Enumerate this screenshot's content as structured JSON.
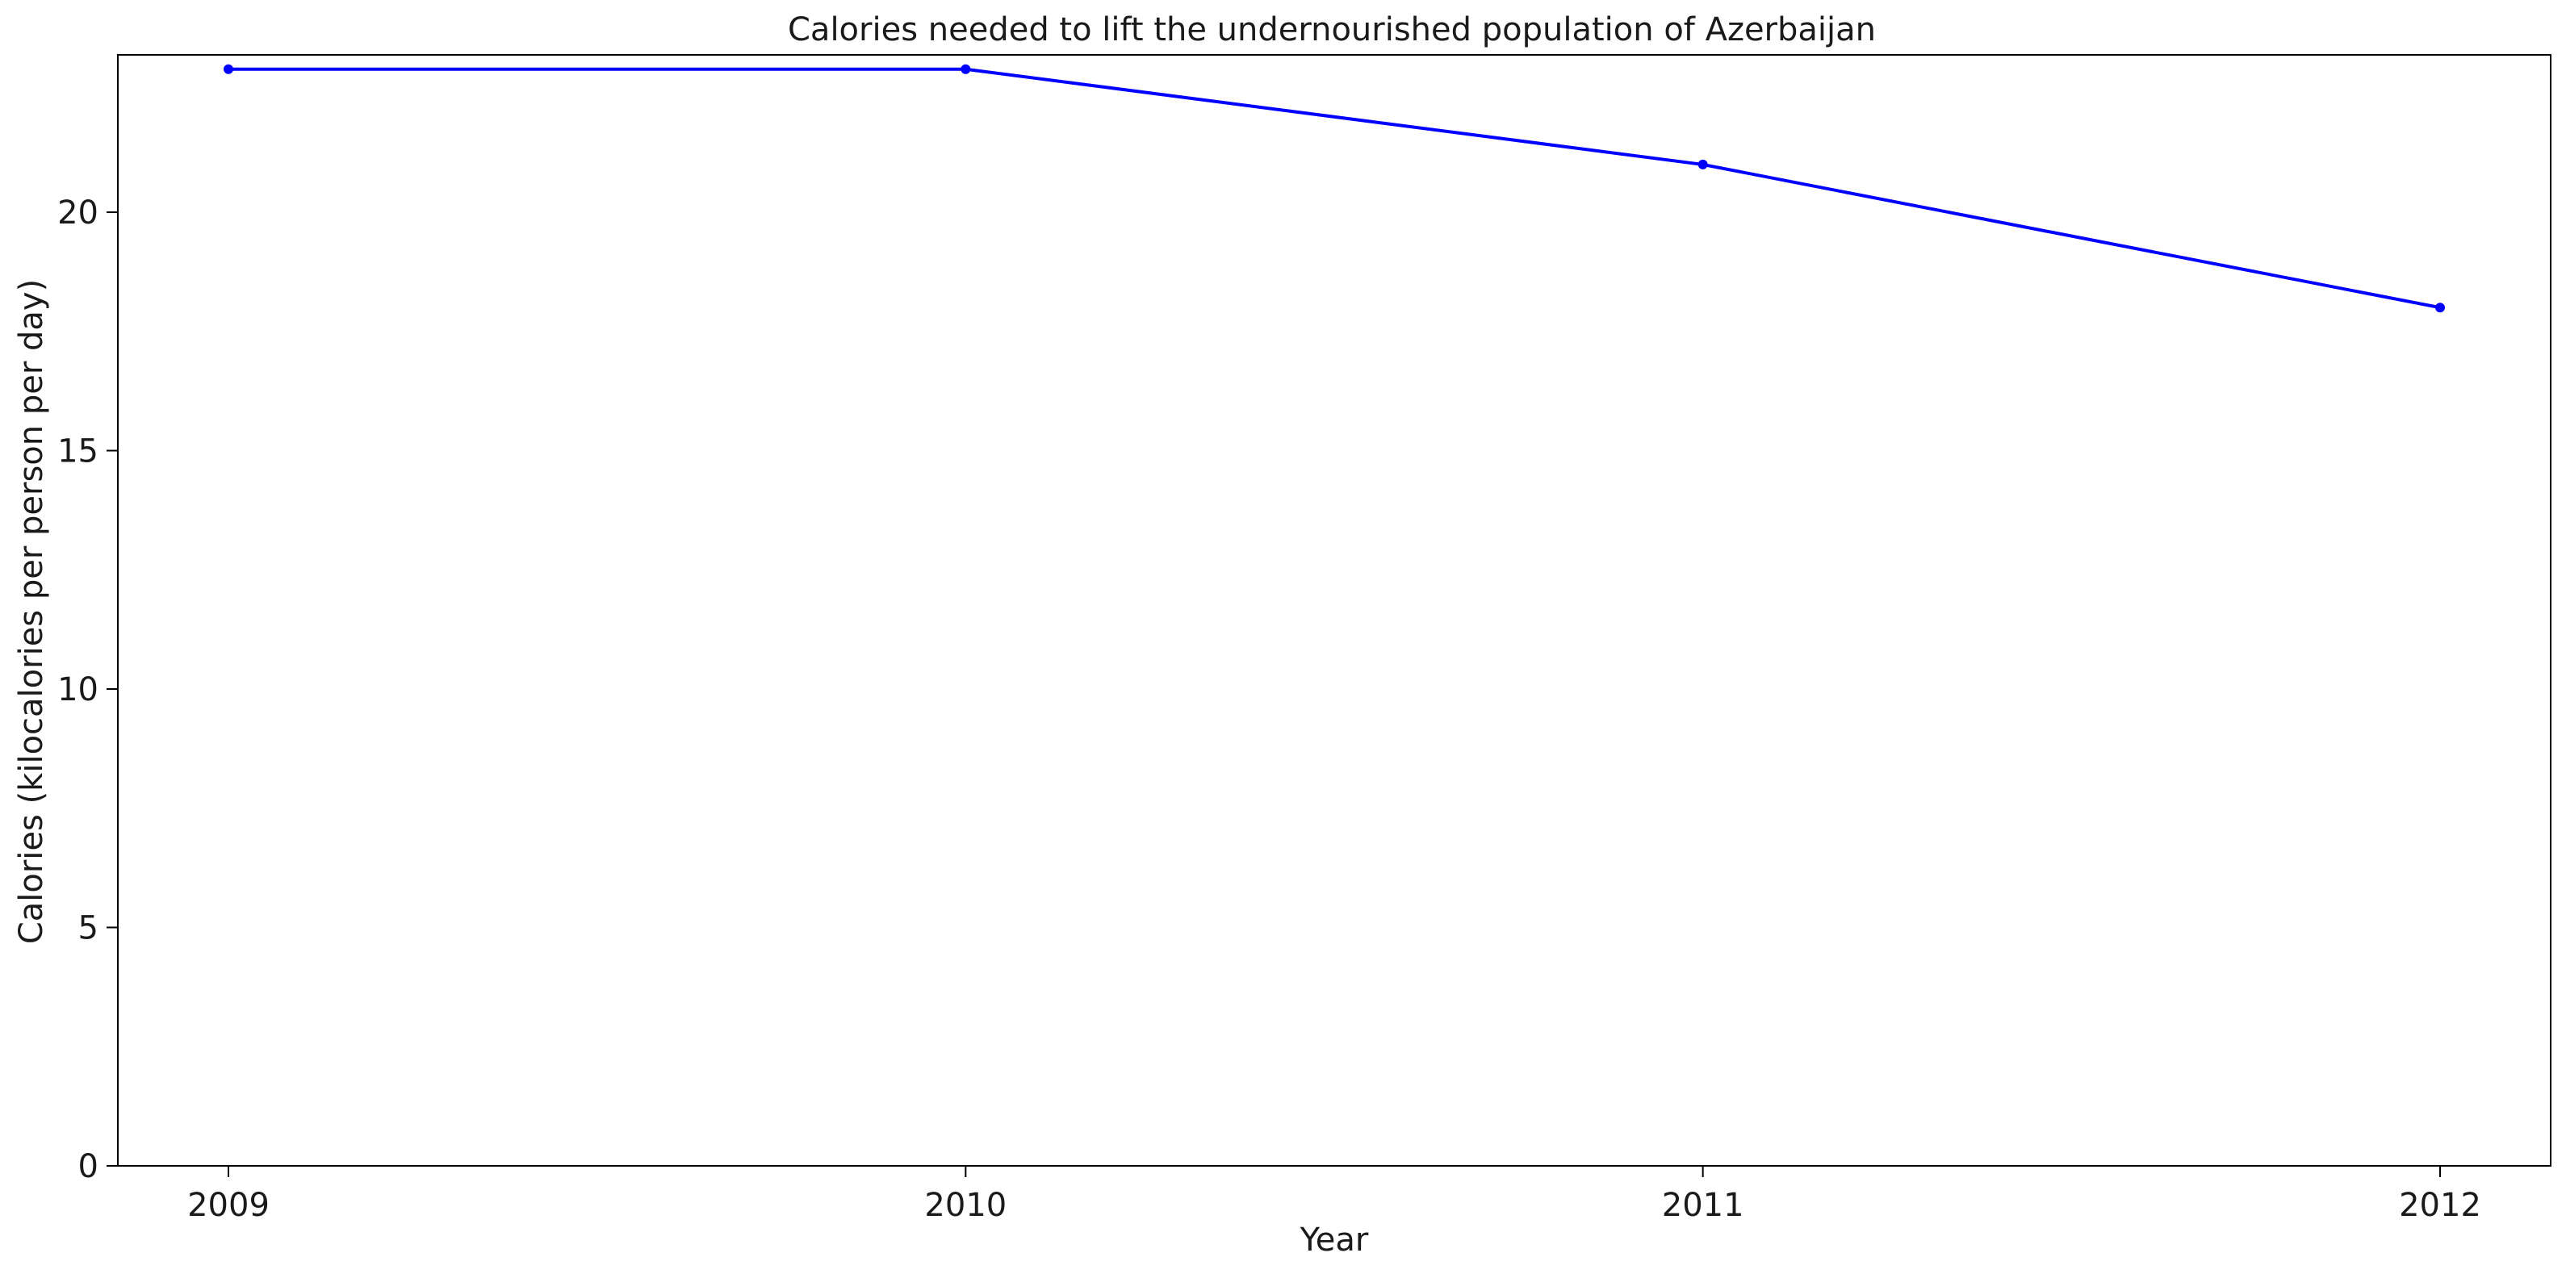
{
  "chart_data": {
    "type": "line",
    "title": "Calories needed to lift the undernourished population of Azerbaijan",
    "xlabel": "Year",
    "ylabel": "Calories (kilocalories per person per day)",
    "x": [
      "2009",
      "2010",
      "2011",
      "2012"
    ],
    "series": [
      {
        "values": [
          23,
          23,
          21,
          18
        ]
      }
    ],
    "ylim": [
      0,
      23.3
    ],
    "yticks": [
      0,
      5,
      10,
      15,
      20
    ],
    "grid": false,
    "legend": "none",
    "color": "#0000ff",
    "marker": "dot"
  }
}
